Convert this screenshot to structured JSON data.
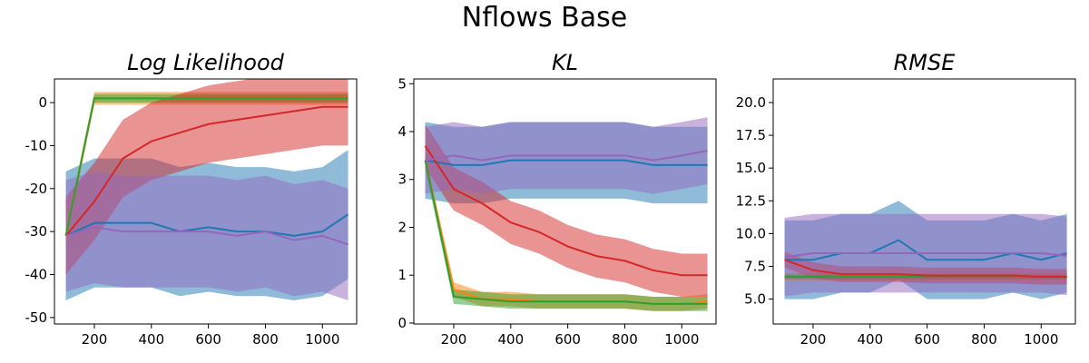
{
  "figure": {
    "title": "Nflows Base"
  },
  "colors": {
    "blue": "#1f77b4",
    "orange": "#ff7f0e",
    "green": "#2ca02c",
    "red": "#d62728",
    "purple": "#9467bd"
  },
  "chart_data": [
    {
      "type": "line",
      "title": "Log Likelihood",
      "xlabel": "",
      "ylabel": "",
      "xlim": [
        60,
        1120
      ],
      "ylim": [
        -51.5,
        5.5
      ],
      "xticks": [
        200,
        400,
        600,
        800,
        1000
      ],
      "yticks": [
        -50,
        -40,
        -30,
        -20,
        -10,
        0
      ],
      "x": [
        100,
        200,
        300,
        400,
        500,
        600,
        700,
        800,
        900,
        1000,
        1090
      ],
      "series": [
        {
          "color": "blue",
          "values": [
            -31,
            -28,
            -28,
            -28,
            -30,
            -29,
            -30,
            -30,
            -31,
            -30,
            -26
          ],
          "band": 15
        },
        {
          "color": "orange",
          "values": [
            -31,
            1,
            1,
            1,
            1,
            1,
            1,
            1,
            1,
            1,
            1
          ],
          "band": 1.5
        },
        {
          "color": "green",
          "values": [
            -31,
            1,
            1,
            1,
            1,
            1,
            1,
            1,
            1,
            1,
            1
          ],
          "band": 1
        },
        {
          "color": "red",
          "values": [
            -31,
            -23,
            -13,
            -9,
            -7,
            -5,
            -4,
            -3,
            -2,
            -1,
            -1
          ],
          "band": 9
        },
        {
          "color": "purple",
          "values": [
            -31,
            -29,
            -30,
            -30,
            -30,
            -30,
            -31,
            -30,
            -32,
            -31,
            -33
          ],
          "band": 13
        }
      ]
    },
    {
      "type": "line",
      "title": "KL",
      "xlabel": "",
      "ylabel": "",
      "xlim": [
        60,
        1120
      ],
      "ylim": [
        -0.02,
        5.1
      ],
      "xticks": [
        200,
        400,
        600,
        800,
        1000
      ],
      "yticks": [
        0,
        1,
        2,
        3,
        4,
        5
      ],
      "x": [
        100,
        200,
        300,
        400,
        500,
        600,
        700,
        800,
        900,
        1000,
        1090
      ],
      "series": [
        {
          "color": "blue",
          "values": [
            3.4,
            3.3,
            3.3,
            3.4,
            3.4,
            3.4,
            3.4,
            3.4,
            3.3,
            3.3,
            3.3
          ],
          "band": 0.8
        },
        {
          "color": "orange",
          "values": [
            3.4,
            0.7,
            0.5,
            0.5,
            0.45,
            0.45,
            0.45,
            0.45,
            0.4,
            0.4,
            0.45
          ],
          "band": 0.15
        },
        {
          "color": "green",
          "values": [
            3.4,
            0.55,
            0.5,
            0.45,
            0.45,
            0.45,
            0.45,
            0.45,
            0.4,
            0.4,
            0.4
          ],
          "band": 0.15
        },
        {
          "color": "red",
          "values": [
            3.7,
            2.8,
            2.5,
            2.1,
            1.9,
            1.6,
            1.4,
            1.3,
            1.1,
            1.0,
            1.0
          ],
          "band": 0.45
        },
        {
          "color": "purple",
          "values": [
            3.4,
            3.5,
            3.4,
            3.5,
            3.5,
            3.5,
            3.5,
            3.5,
            3.4,
            3.5,
            3.6
          ],
          "band": 0.7
        }
      ]
    },
    {
      "type": "line",
      "title": "RMSE",
      "xlabel": "",
      "ylabel": "",
      "xlim": [
        60,
        1120
      ],
      "ylim": [
        3.1,
        21.8
      ],
      "xticks": [
        200,
        400,
        600,
        800,
        1000
      ],
      "yticks": [
        5.0,
        7.5,
        10.0,
        12.5,
        15.0,
        17.5,
        20.0
      ],
      "x": [
        100,
        200,
        300,
        400,
        500,
        600,
        700,
        800,
        900,
        1000,
        1090
      ],
      "series": [
        {
          "color": "blue",
          "values": [
            8,
            8,
            8.5,
            8.5,
            9.5,
            8,
            8,
            8,
            8.5,
            8,
            8.5
          ],
          "band": 3
        },
        {
          "color": "orange",
          "values": [
            6.7,
            6.7,
            6.7,
            6.7,
            6.7,
            6.7,
            6.7,
            6.7,
            6.7,
            6.7,
            6.7
          ],
          "band": 0.3
        },
        {
          "color": "green",
          "values": [
            6.7,
            6.7,
            6.7,
            6.7,
            6.7,
            6.7,
            6.7,
            6.7,
            6.7,
            6.7,
            6.7
          ],
          "band": 0.2
        },
        {
          "color": "red",
          "values": [
            8,
            7.2,
            6.9,
            6.9,
            6.9,
            6.8,
            6.8,
            6.8,
            6.8,
            6.7,
            6.7
          ],
          "band": 0.6
        },
        {
          "color": "purple",
          "values": [
            8.2,
            8.5,
            8.5,
            8.5,
            8.5,
            8.5,
            8.5,
            8.5,
            8.5,
            8.5,
            8.3
          ],
          "band": 3
        }
      ]
    }
  ]
}
